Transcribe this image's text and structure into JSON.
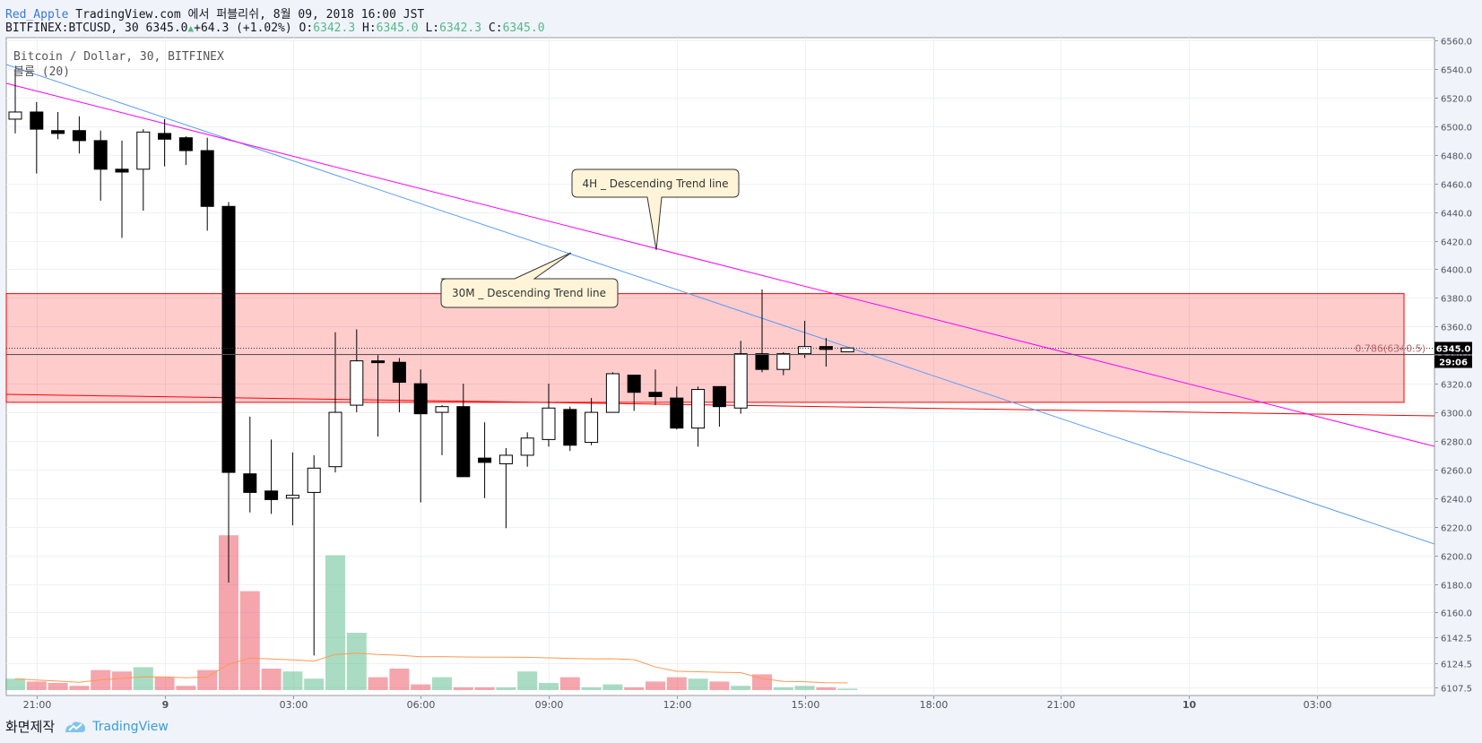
{
  "header": {
    "author": "Red_Apple",
    "published": "TradingView.com 에서 퍼블리쉬, 8월 09, 2018 16:00 JST",
    "symbol": "BITFINEX:BTCUSD, 30",
    "last": "6345.0",
    "change": "+64.3 (+1.02%)",
    "o_label": "O:",
    "o": "6342.3",
    "h_label": "H:",
    "h": "6345.0",
    "l_label": "L:",
    "l": "6342.3",
    "c_label": "C:",
    "c": "6345.0"
  },
  "footer": {
    "made_with": "화면제작",
    "brand": "TradingView"
  },
  "chart_data": {
    "type": "candlestick",
    "legend": [
      "Bitcoin / Dollar, 30, BITFINEX",
      "볼륨 (20)"
    ],
    "ylim": [
      6102,
      6562
    ],
    "y_ticks": [
      "6560.0",
      "6540.0",
      "6520.0",
      "6500.0",
      "6480.0",
      "6460.0",
      "6440.0",
      "6420.0",
      "6400.0",
      "6380.0",
      "6360.0",
      "6340.0",
      "6320.0",
      "6300.0",
      "6280.0",
      "6260.0",
      "6240.0",
      "6220.0",
      "6200.0",
      "6180.0",
      "6160.0",
      "6142.5",
      "6124.5",
      "6107.5"
    ],
    "x_ticks": [
      "21:00",
      "9",
      "03:00",
      "06:00",
      "09:00",
      "12:00",
      "15:00",
      "18:00",
      "21:00",
      "10",
      "03:00"
    ],
    "candles": [
      {
        "o": 6505,
        "h": 6540,
        "l": 6495,
        "c": 6510
      },
      {
        "o": 6510,
        "h": 6517,
        "l": 6467,
        "c": 6498
      },
      {
        "o": 6497,
        "h": 6510,
        "l": 6491,
        "c": 6495
      },
      {
        "o": 6497,
        "h": 6507,
        "l": 6481,
        "c": 6490
      },
      {
        "o": 6490,
        "h": 6497,
        "l": 6448,
        "c": 6470
      },
      {
        "o": 6470,
        "h": 6490,
        "l": 6422,
        "c": 6468
      },
      {
        "o": 6470,
        "h": 6498,
        "l": 6441,
        "c": 6496
      },
      {
        "o": 6495,
        "h": 6505,
        "l": 6472,
        "c": 6491
      },
      {
        "o": 6492,
        "h": 6493,
        "l": 6473,
        "c": 6483
      },
      {
        "o": 6483,
        "h": 6492,
        "l": 6427,
        "c": 6444
      },
      {
        "o": 6444,
        "h": 6447,
        "l": 6181,
        "c": 6258
      },
      {
        "o": 6257,
        "h": 6297,
        "l": 6230,
        "c": 6244
      },
      {
        "o": 6245,
        "h": 6281,
        "l": 6229,
        "c": 6239
      },
      {
        "o": 6240,
        "h": 6272,
        "l": 6221,
        "c": 6242
      },
      {
        "o": 6244,
        "h": 6270,
        "l": 6130,
        "c": 6261
      },
      {
        "o": 6262,
        "h": 6356,
        "l": 6258,
        "c": 6300
      },
      {
        "o": 6305,
        "h": 6358,
        "l": 6300,
        "c": 6336
      },
      {
        "o": 6336,
        "h": 6340,
        "l": 6283,
        "c": 6335
      },
      {
        "o": 6335,
        "h": 6338,
        "l": 6300,
        "c": 6321
      },
      {
        "o": 6320,
        "h": 6330,
        "l": 6237,
        "c": 6299
      },
      {
        "o": 6300,
        "h": 6305,
        "l": 6270,
        "c": 6304
      },
      {
        "o": 6304,
        "h": 6320,
        "l": 6255,
        "c": 6255
      },
      {
        "o": 6268,
        "h": 6293,
        "l": 6240,
        "c": 6265
      },
      {
        "o": 6264,
        "h": 6275,
        "l": 6219,
        "c": 6270
      },
      {
        "o": 6270,
        "h": 6286,
        "l": 6262,
        "c": 6282
      },
      {
        "o": 6281,
        "h": 6320,
        "l": 6276,
        "c": 6303
      },
      {
        "o": 6302,
        "h": 6304,
        "l": 6273,
        "c": 6277
      },
      {
        "o": 6279,
        "h": 6310,
        "l": 6277,
        "c": 6300
      },
      {
        "o": 6300,
        "h": 6328,
        "l": 6300,
        "c": 6327
      },
      {
        "o": 6326,
        "h": 6326,
        "l": 6301,
        "c": 6314
      },
      {
        "o": 6314,
        "h": 6330,
        "l": 6305,
        "c": 6311
      },
      {
        "o": 6310,
        "h": 6318,
        "l": 6288,
        "c": 6289
      },
      {
        "o": 6289,
        "h": 6318,
        "l": 6276,
        "c": 6316
      },
      {
        "o": 6318,
        "h": 6316,
        "l": 6290,
        "c": 6304
      },
      {
        "o": 6303,
        "h": 6350,
        "l": 6299,
        "c": 6341
      },
      {
        "o": 6341,
        "h": 6386,
        "l": 6328,
        "c": 6330
      },
      {
        "o": 6330,
        "h": 6342,
        "l": 6326,
        "c": 6341
      },
      {
        "o": 6341,
        "h": 6364,
        "l": 6338,
        "c": 6346
      },
      {
        "o": 6346,
        "h": 6352,
        "l": 6332,
        "c": 6344
      },
      {
        "o": 6342.3,
        "h": 6345,
        "l": 6342.3,
        "c": 6345
      }
    ],
    "volume_max_label": "6142.5",
    "volumes": [
      8,
      6,
      5,
      3,
      14,
      13,
      16,
      9,
      3,
      14,
      108,
      69,
      15,
      13,
      8,
      94,
      40,
      9,
      15,
      4,
      9,
      2,
      2,
      2,
      13,
      5,
      9,
      2,
      4,
      2,
      6,
      9,
      8,
      6,
      3,
      11,
      2,
      3,
      2,
      1
    ],
    "annotations": {
      "zone": {
        "top": 6383,
        "bottom": 6307,
        "color": "#ff0000"
      },
      "last_price": "6345.0",
      "countdown": "29:06",
      "fib_label": "0.786(6340.5)",
      "trend_30m": "30M _ Descending Trend line",
      "trend_4h": "4H _ Descending Trend line"
    },
    "colors": {
      "up_candle": "#ffffff",
      "down_candle": "#000000",
      "vol_up": "#53b987",
      "vol_down": "#eb4d5c",
      "trend_4h": "#ff00ff",
      "trend_30m": "#5b9cf6",
      "red_line": "#ff0000",
      "vol_ma": "#ff9850"
    }
  }
}
